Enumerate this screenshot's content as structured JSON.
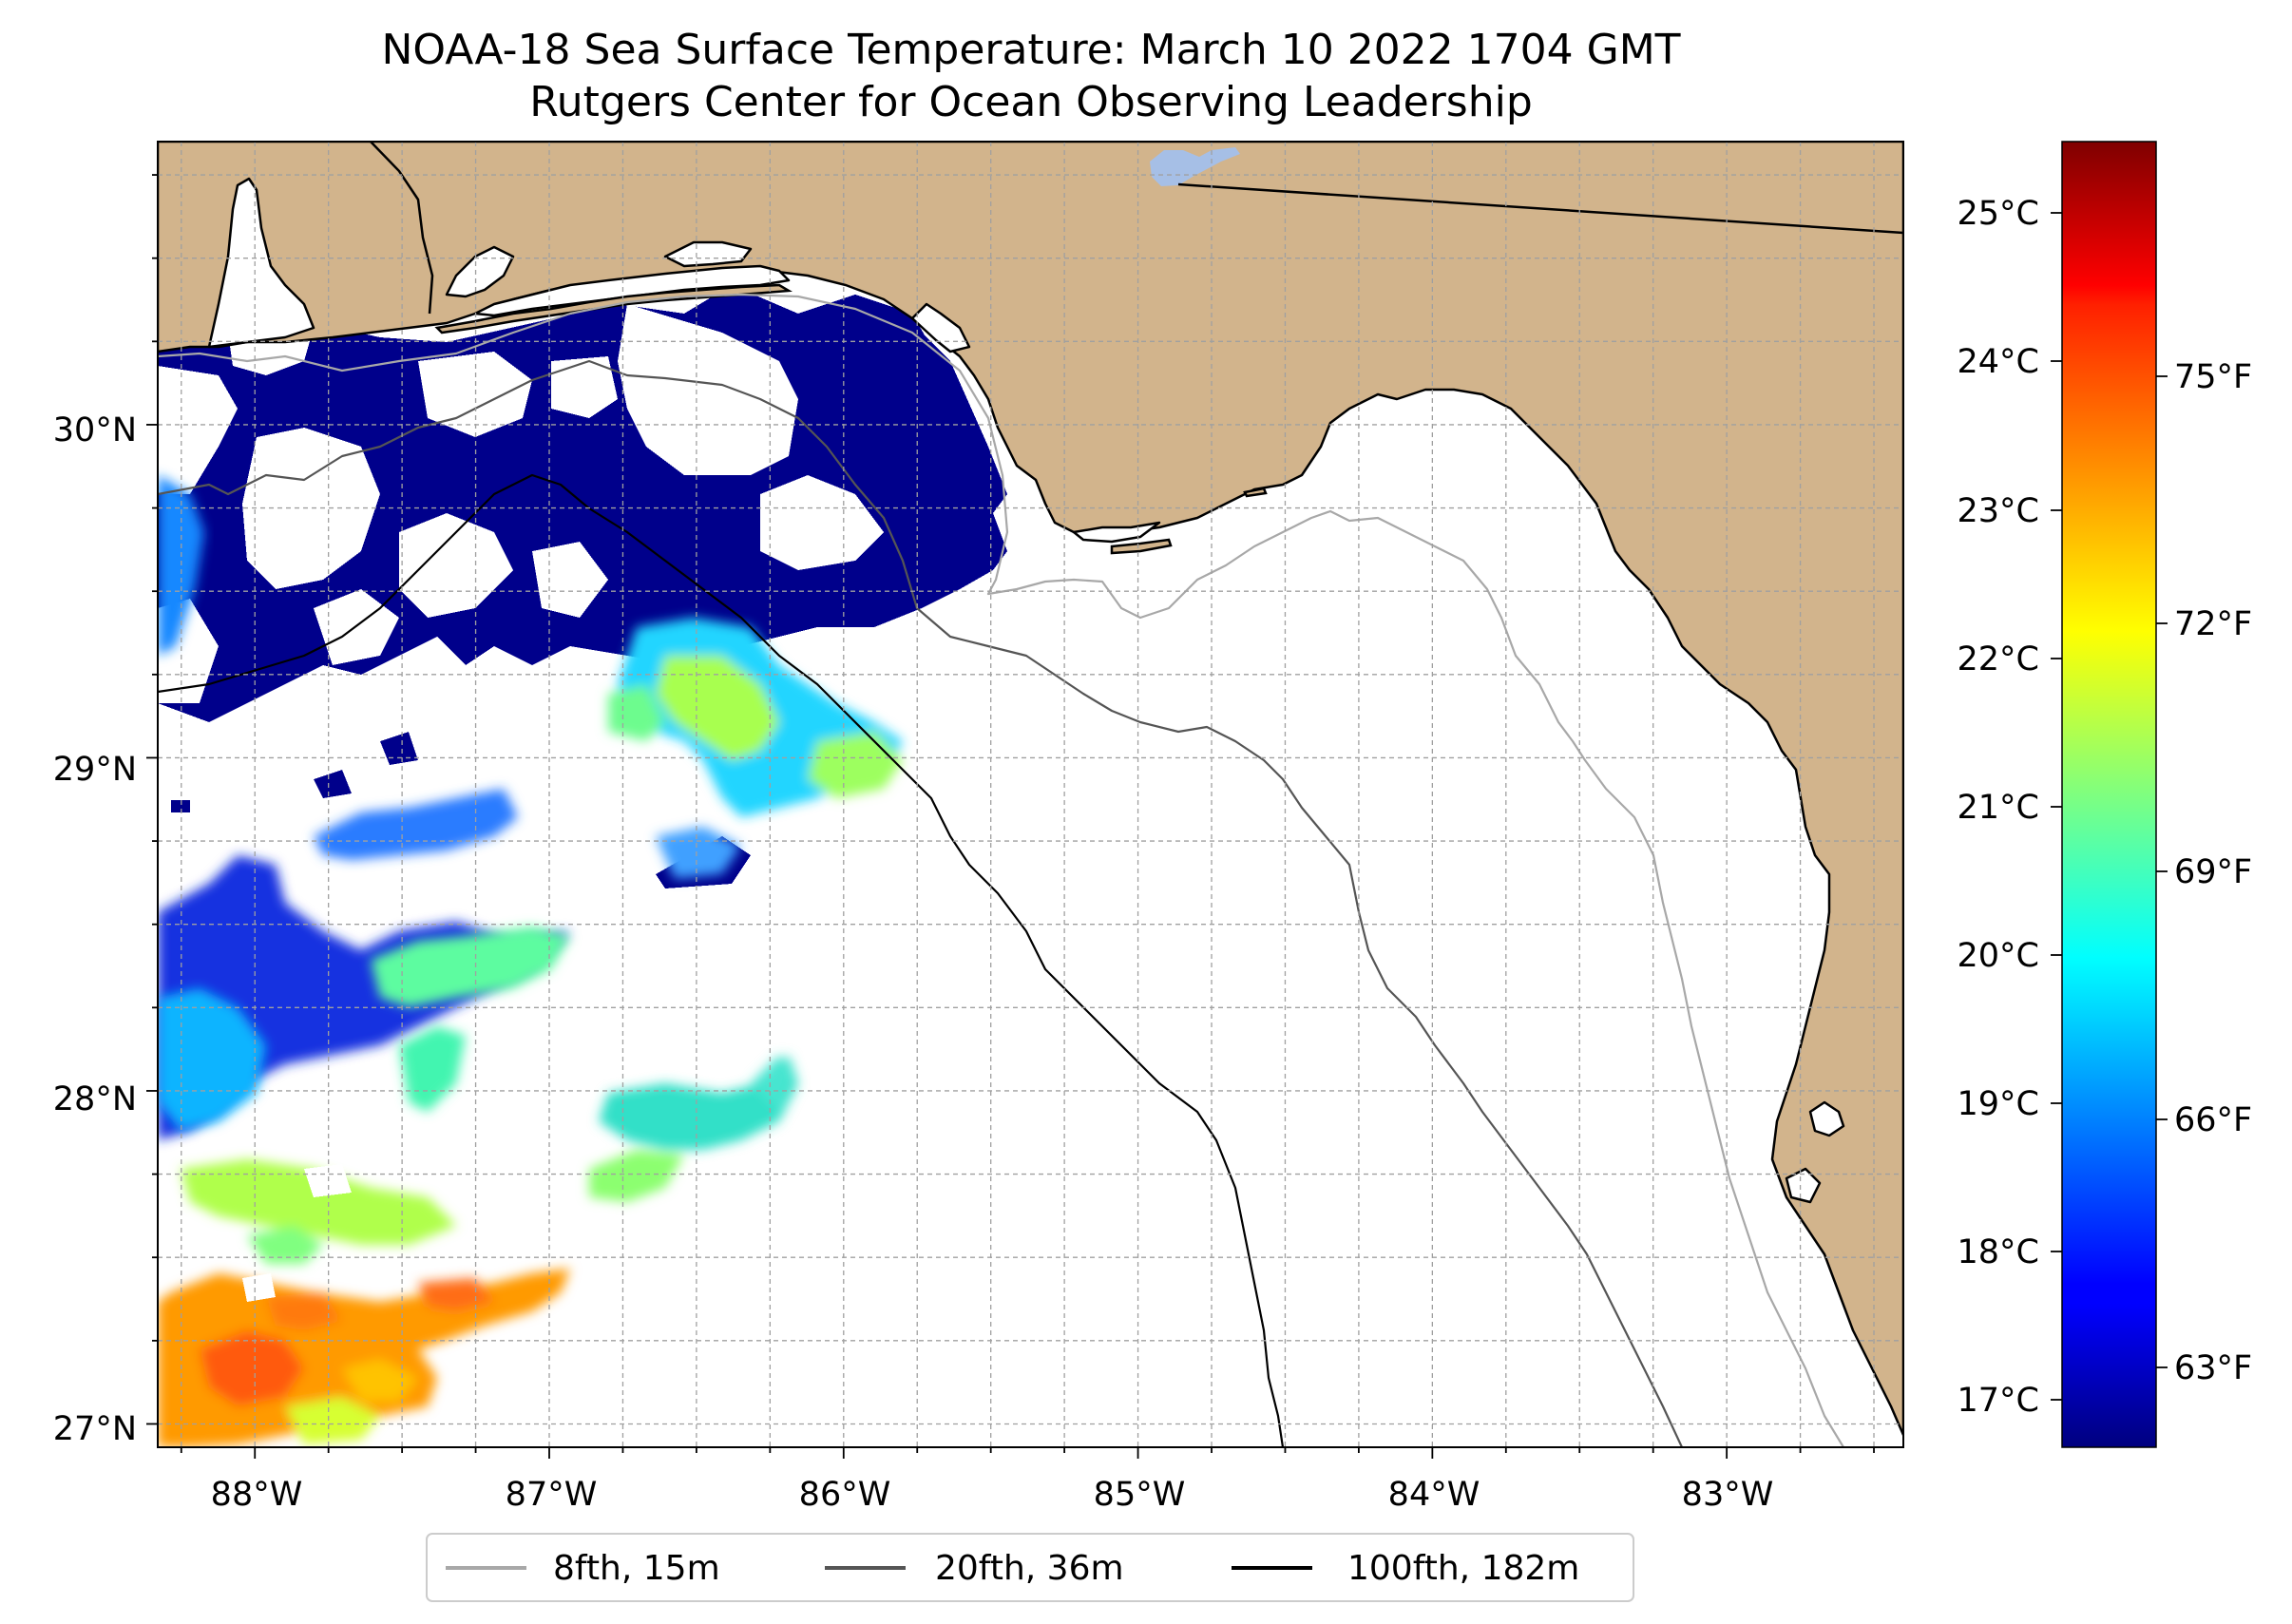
{
  "title": {
    "line1": "NOAA-18 Sea Surface Temperature: March 10 2022 1704 GMT",
    "line2": "Rutgers Center for Ocean Observing Leadership"
  },
  "map": {
    "lon_range": [
      -88.33,
      -82.4
    ],
    "lat_range": [
      26.93,
      30.85
    ],
    "land_color": "#d2b48c",
    "ocean_color": "#ffffff",
    "lake_color": "#a6bfe6",
    "grid": "dashed, every 0.25 degrees",
    "lon_tick_labels": [
      "88°W",
      "87°W",
      "86°W",
      "85°W",
      "84°W",
      "83°W"
    ],
    "lat_tick_labels": [
      "30°N",
      "29°N",
      "28°N",
      "27°N"
    ]
  },
  "colorbar": {
    "colormap": "jet",
    "celsius_range": [
      16.7,
      25.5
    ],
    "celsius_labels": [
      "25°C",
      "24°C",
      "23°C",
      "22°C",
      "21°C",
      "20°C",
      "19°C",
      "18°C",
      "17°C"
    ],
    "fahrenheit_labels": [
      "75°F",
      "72°F",
      "69°F",
      "66°F",
      "63°F"
    ]
  },
  "legend": {
    "placement": "bottom-center",
    "items": [
      {
        "label": "8fth, 15m",
        "color": "#a8a8a8"
      },
      {
        "label": "20fth, 36m",
        "color": "#555555"
      },
      {
        "label": "100fth, 182m",
        "color": "#000000"
      }
    ]
  }
}
